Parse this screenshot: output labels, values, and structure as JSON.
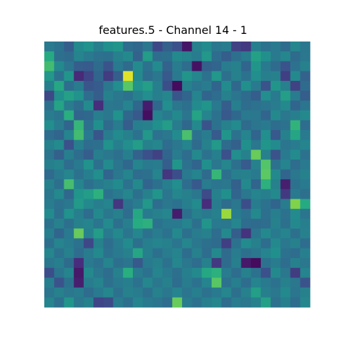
{
  "chart_data": {
    "type": "heatmap",
    "title": "features.5 - Channel 14 - 1",
    "colormap": "viridis",
    "axes_visible": false,
    "grid": false,
    "vmin": 0,
    "vmax": 1,
    "rows": 27,
    "cols": 27,
    "values": [
      [
        0.41,
        0.38,
        0.3,
        0.47,
        0.51,
        0.43,
        0.5,
        0.52,
        0.36,
        0.34,
        0.4,
        0.22,
        0.31,
        0.25,
        0.06,
        0.44,
        0.48,
        0.4,
        0.42,
        0.2,
        0.17,
        0.43,
        0.38,
        0.41,
        0.35,
        0.46,
        0.4
      ],
      [
        0.61,
        0.37,
        0.35,
        0.45,
        0.41,
        0.38,
        0.37,
        0.44,
        0.47,
        0.32,
        0.55,
        0.36,
        0.37,
        0.47,
        0.45,
        0.42,
        0.53,
        0.36,
        0.3,
        0.37,
        0.42,
        0.57,
        0.5,
        0.41,
        0.46,
        0.35,
        0.4
      ],
      [
        0.69,
        0.47,
        0.39,
        0.3,
        0.29,
        0.35,
        0.26,
        0.41,
        0.35,
        0.48,
        0.38,
        0.48,
        0.32,
        0.42,
        0.36,
        0.05,
        0.31,
        0.33,
        0.42,
        0.44,
        0.33,
        0.52,
        0.41,
        0.35,
        0.26,
        0.38,
        0.44
      ],
      [
        0.53,
        0.38,
        0.52,
        0.12,
        0.21,
        0.33,
        0.18,
        0.3,
        0.96,
        0.47,
        0.36,
        0.4,
        0.28,
        0.41,
        0.52,
        0.46,
        0.38,
        0.53,
        0.37,
        0.44,
        0.38,
        0.49,
        0.43,
        0.44,
        0.19,
        0.47,
        0.32
      ],
      [
        0.43,
        0.6,
        0.36,
        0.42,
        0.27,
        0.29,
        0.4,
        0.49,
        0.74,
        0.51,
        0.56,
        0.43,
        0.24,
        0.03,
        0.44,
        0.39,
        0.42,
        0.33,
        0.48,
        0.34,
        0.5,
        0.41,
        0.26,
        0.52,
        0.44,
        0.2,
        0.35
      ],
      [
        0.22,
        0.49,
        0.57,
        0.51,
        0.36,
        0.3,
        0.44,
        0.4,
        0.38,
        0.44,
        0.49,
        0.43,
        0.46,
        0.27,
        0.33,
        0.45,
        0.33,
        0.36,
        0.44,
        0.39,
        0.35,
        0.3,
        0.49,
        0.41,
        0.56,
        0.42,
        0.3
      ],
      [
        0.37,
        0.58,
        0.42,
        0.36,
        0.48,
        0.13,
        0.4,
        0.39,
        0.45,
        0.34,
        0.08,
        0.34,
        0.49,
        0.4,
        0.37,
        0.48,
        0.52,
        0.41,
        0.3,
        0.43,
        0.36,
        0.38,
        0.39,
        0.42,
        0.47,
        0.33,
        0.39
      ],
      [
        0.42,
        0.39,
        0.63,
        0.33,
        0.34,
        0.43,
        0.4,
        0.51,
        0.34,
        0.28,
        0.04,
        0.45,
        0.41,
        0.47,
        0.39,
        0.58,
        0.45,
        0.38,
        0.28,
        0.34,
        0.41,
        0.4,
        0.33,
        0.47,
        0.4,
        0.43,
        0.47
      ],
      [
        0.49,
        0.42,
        0.33,
        0.66,
        0.37,
        0.5,
        0.35,
        0.42,
        0.3,
        0.43,
        0.44,
        0.5,
        0.55,
        0.42,
        0.34,
        0.47,
        0.26,
        0.38,
        0.44,
        0.48,
        0.35,
        0.39,
        0.41,
        0.36,
        0.38,
        0.65,
        0.36
      ],
      [
        0.36,
        0.33,
        0.45,
        0.69,
        0.41,
        0.27,
        0.42,
        0.48,
        0.44,
        0.38,
        0.53,
        0.38,
        0.4,
        0.48,
        0.71,
        0.38,
        0.42,
        0.29,
        0.52,
        0.38,
        0.45,
        0.33,
        0.49,
        0.28,
        0.44,
        0.59,
        0.41
      ],
      [
        0.44,
        0.48,
        0.25,
        0.43,
        0.36,
        0.37,
        0.51,
        0.43,
        0.49,
        0.55,
        0.44,
        0.46,
        0.36,
        0.4,
        0.45,
        0.35,
        0.44,
        0.54,
        0.35,
        0.31,
        0.5,
        0.4,
        0.52,
        0.48,
        0.39,
        0.42,
        0.45
      ],
      [
        0.39,
        0.31,
        0.43,
        0.36,
        0.3,
        0.43,
        0.4,
        0.37,
        0.43,
        0.32,
        0.25,
        0.2,
        0.33,
        0.42,
        0.36,
        0.47,
        0.38,
        0.43,
        0.25,
        0.49,
        0.44,
        0.77,
        0.44,
        0.26,
        0.41,
        0.48,
        0.38
      ],
      [
        0.43,
        0.45,
        0.36,
        0.41,
        0.51,
        0.37,
        0.48,
        0.39,
        0.34,
        0.45,
        0.41,
        0.42,
        0.3,
        0.52,
        0.38,
        0.33,
        0.5,
        0.4,
        0.46,
        0.37,
        0.29,
        0.44,
        0.73,
        0.38,
        0.45,
        0.36,
        0.41
      ],
      [
        0.35,
        0.41,
        0.46,
        0.38,
        0.43,
        0.49,
        0.33,
        0.4,
        0.45,
        0.36,
        0.37,
        0.45,
        0.16,
        0.24,
        0.41,
        0.45,
        0.35,
        0.66,
        0.37,
        0.43,
        0.44,
        0.41,
        0.75,
        0.47,
        0.33,
        0.4,
        0.44
      ],
      [
        0.44,
        0.37,
        0.7,
        0.45,
        0.37,
        0.41,
        0.44,
        0.48,
        0.38,
        0.47,
        0.33,
        0.37,
        0.43,
        0.49,
        0.36,
        0.28,
        0.42,
        0.39,
        0.4,
        0.31,
        0.47,
        0.33,
        0.64,
        0.44,
        0.09,
        0.38,
        0.41
      ],
      [
        0.4,
        0.47,
        0.34,
        0.52,
        0.55,
        0.64,
        0.38,
        0.41,
        0.46,
        0.37,
        0.44,
        0.52,
        0.39,
        0.46,
        0.44,
        0.4,
        0.23,
        0.44,
        0.5,
        0.33,
        0.4,
        0.45,
        0.43,
        0.47,
        0.17,
        0.41,
        0.37
      ],
      [
        0.42,
        0.38,
        0.4,
        0.54,
        0.47,
        0.43,
        0.45,
        0.16,
        0.38,
        0.42,
        0.53,
        0.36,
        0.4,
        0.38,
        0.43,
        0.48,
        0.13,
        0.42,
        0.36,
        0.4,
        0.24,
        0.42,
        0.38,
        0.33,
        0.42,
        0.81,
        0.61
      ],
      [
        0.48,
        0.37,
        0.51,
        0.43,
        0.36,
        0.47,
        0.4,
        0.44,
        0.36,
        0.6,
        0.41,
        0.44,
        0.46,
        0.08,
        0.37,
        0.44,
        0.41,
        0.44,
        0.85,
        0.42,
        0.38,
        0.47,
        0.37,
        0.43,
        0.38,
        0.48,
        0.39
      ],
      [
        0.38,
        0.44,
        0.37,
        0.44,
        0.45,
        0.39,
        0.48,
        0.37,
        0.43,
        0.62,
        0.64,
        0.38,
        0.41,
        0.41,
        0.45,
        0.37,
        0.52,
        0.41,
        0.4,
        0.46,
        0.36,
        0.35,
        0.36,
        0.44,
        0.37,
        0.47,
        0.43
      ],
      [
        0.43,
        0.33,
        0.41,
        0.77,
        0.44,
        0.55,
        0.41,
        0.47,
        0.39,
        0.46,
        0.38,
        0.42,
        0.38,
        0.47,
        0.37,
        0.42,
        0.44,
        0.36,
        0.47,
        0.3,
        0.15,
        0.39,
        0.47,
        0.41,
        0.45,
        0.37,
        0.44
      ],
      [
        0.37,
        0.45,
        0.42,
        0.38,
        0.22,
        0.44,
        0.36,
        0.42,
        0.48,
        0.37,
        0.43,
        0.45,
        0.44,
        0.39,
        0.46,
        0.4,
        0.37,
        0.35,
        0.19,
        0.38,
        0.48,
        0.44,
        0.36,
        0.47,
        0.4,
        0.44,
        0.36
      ],
      [
        0.46,
        0.38,
        0.44,
        0.36,
        0.42,
        0.47,
        0.38,
        0.41,
        0.44,
        0.59,
        0.43,
        0.37,
        0.42,
        0.45,
        0.36,
        0.44,
        0.36,
        0.47,
        0.35,
        0.42,
        0.37,
        0.4,
        0.45,
        0.5,
        0.38,
        0.36,
        0.43
      ],
      [
        0.4,
        0.43,
        0.35,
        0.13,
        0.41,
        0.38,
        0.45,
        0.37,
        0.39,
        0.28,
        0.41,
        0.44,
        0.38,
        0.46,
        0.4,
        0.36,
        0.44,
        0.17,
        0.35,
        0.43,
        0.07,
        0.03,
        0.38,
        0.42,
        0.36,
        0.44,
        0.4
      ],
      [
        0.24,
        0.39,
        0.45,
        0.07,
        0.47,
        0.4,
        0.36,
        0.44,
        0.63,
        0.42,
        0.38,
        0.45,
        0.41,
        0.37,
        0.43,
        0.47,
        0.6,
        0.64,
        0.42,
        0.36,
        0.44,
        0.38,
        0.25,
        0.47,
        0.4,
        0.18,
        0.45
      ],
      [
        0.43,
        0.26,
        0.38,
        0.09,
        0.42,
        0.45,
        0.37,
        0.41,
        0.43,
        0.38,
        0.46,
        0.4,
        0.44,
        0.36,
        0.42,
        0.38,
        0.45,
        0.74,
        0.38,
        0.43,
        0.36,
        0.45,
        0.41,
        0.38,
        0.44,
        0.4,
        0.26
      ],
      [
        0.39,
        0.44,
        0.4,
        0.42,
        0.36,
        0.41,
        0.46,
        0.38,
        0.44,
        0.42,
        0.37,
        0.44,
        0.4,
        0.45,
        0.39,
        0.43,
        0.38,
        0.41,
        0.46,
        0.37,
        0.44,
        0.56,
        0.43,
        0.4,
        0.47,
        0.39,
        0.44
      ],
      [
        0.45,
        0.37,
        0.52,
        0.4,
        0.44,
        0.21,
        0.23,
        0.42,
        0.37,
        0.45,
        0.41,
        0.39,
        0.36,
        0.77,
        0.42,
        0.38,
        0.43,
        0.46,
        0.36,
        0.42,
        0.4,
        0.44,
        0.57,
        0.38,
        0.43,
        0.36,
        0.46
      ]
    ]
  }
}
